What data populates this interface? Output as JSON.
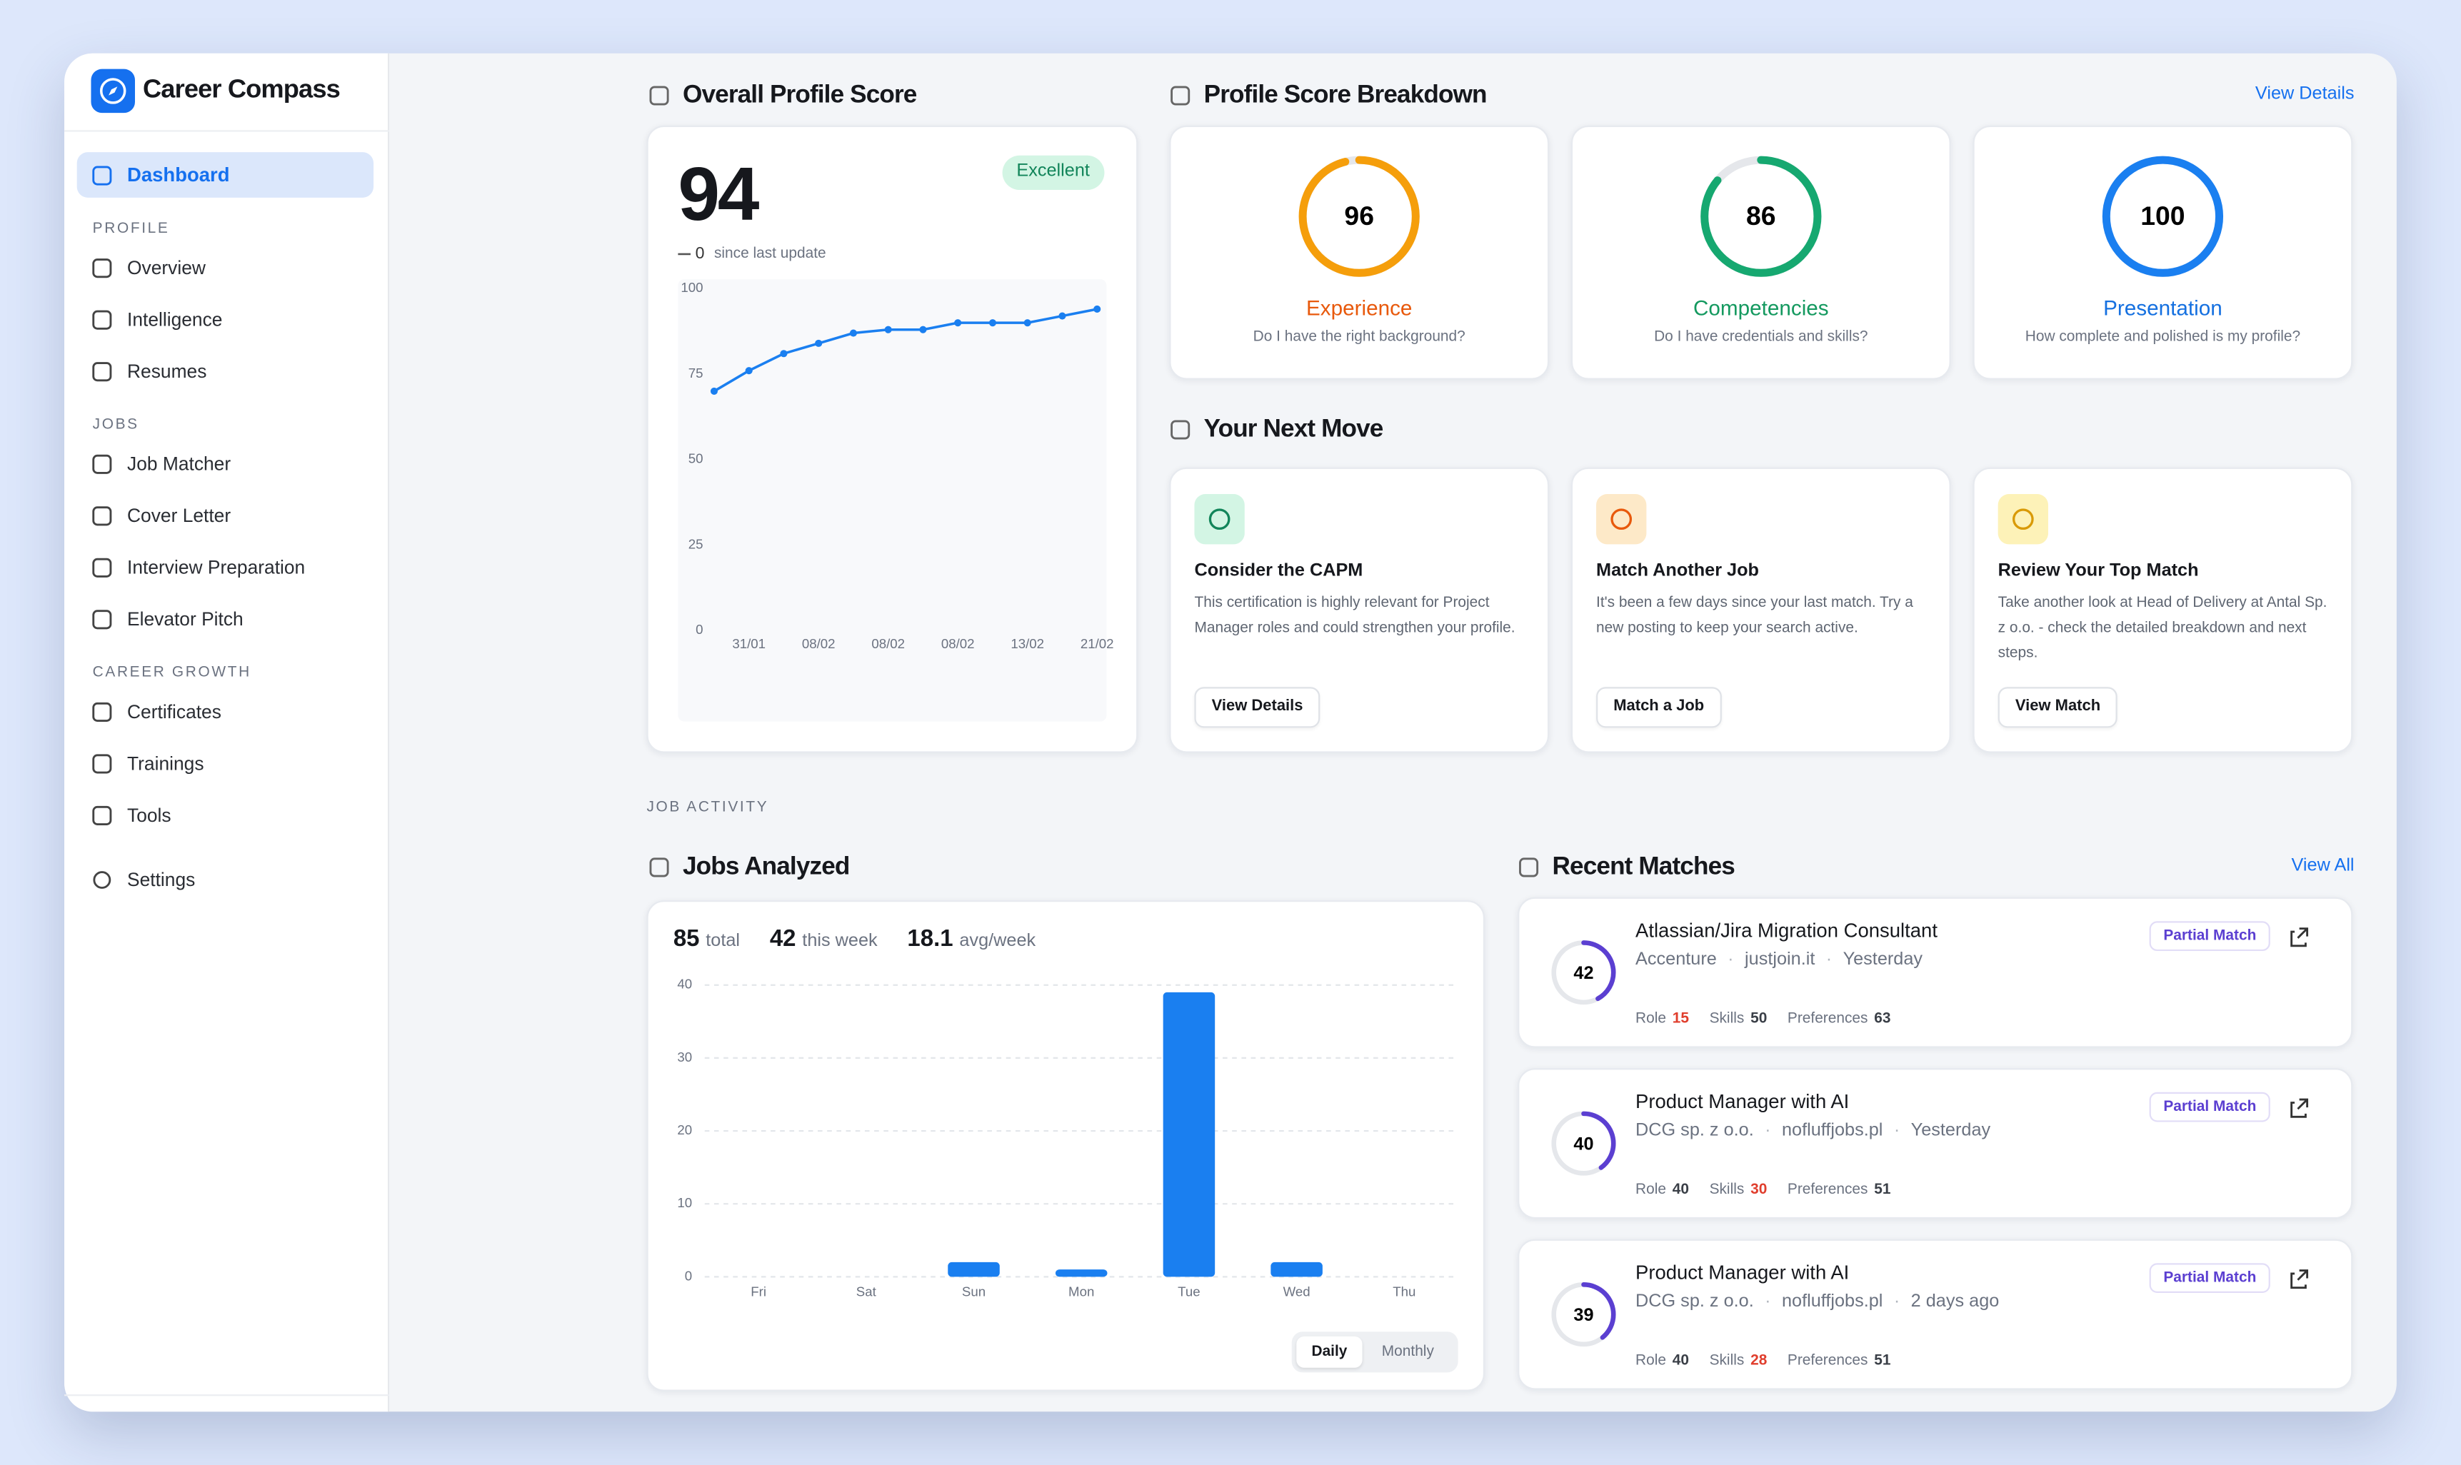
{
  "app": {
    "name": "Career Compass"
  },
  "sidebar": {
    "active": "Dashboard",
    "sections": [
      {
        "title": "PROFILE",
        "items": [
          "Overview",
          "Intelligence",
          "Resumes"
        ]
      },
      {
        "title": "JOBS",
        "items": [
          "Job Matcher",
          "Cover Letter",
          "Interview Preparation",
          "Elevator Pitch"
        ]
      },
      {
        "title": "CAREER GROWTH",
        "items": [
          "Certificates",
          "Trainings",
          "Tools"
        ]
      }
    ],
    "settings": "Settings"
  },
  "profile_score": {
    "title": "Overall Profile Score",
    "score": 94,
    "badge": "Excellent",
    "delta": 0,
    "delta_label": "since last update",
    "chart": {
      "type": "line",
      "x": [
        null,
        "31/01",
        null,
        "08/02",
        null,
        "08/02",
        null,
        "08/02",
        null,
        "13/02",
        null,
        "21/02"
      ],
      "values": [
        70,
        76,
        81,
        84,
        87,
        88,
        88,
        90,
        90,
        90,
        92,
        94
      ],
      "color": "#1a7ff0",
      "ylim": [
        0,
        100
      ],
      "yticks": [
        0,
        25,
        50,
        75,
        100
      ],
      "grid": false
    }
  },
  "breakdown": {
    "title": "Profile Score Breakdown",
    "link": "View Details",
    "items": [
      {
        "score": 96,
        "label": "Experience",
        "question": "Do I have the right background?",
        "color": "#f59e0b",
        "label_color": "#e8590c"
      },
      {
        "score": 86,
        "label": "Competencies",
        "question": "Do I have credentials and skills?",
        "color": "#16a870",
        "label_color": "#14995f"
      },
      {
        "score": 100,
        "label": "Presentation",
        "question": "How complete and polished is my profile?",
        "color": "#1a7ff0",
        "label_color": "#1570e0"
      }
    ]
  },
  "next_move": {
    "title": "Your Next Move",
    "cards": [
      {
        "title": "Consider the CAPM",
        "text": "This certification is highly relevant for Project Manager roles and could strengthen your profile.",
        "button": "View Details"
      },
      {
        "title": "Match Another Job",
        "text": "It's been a few days since your last match. Try a new posting to keep your search active.",
        "button": "Match a Job"
      },
      {
        "title": "Review Your Top Match",
        "text": "Take another look at Head of Delivery at Antal Sp. z o.o. - check the detailed breakdown and next steps.",
        "button": "View Match"
      }
    ]
  },
  "job_activity": {
    "label": "JOB ACTIVITY",
    "jobs_analyzed": {
      "title": "Jobs Analyzed",
      "stats": [
        {
          "value": 85,
          "label": "total"
        },
        {
          "value": 42,
          "label": "this week"
        },
        {
          "value": 18.1,
          "label": "avg/week"
        }
      ],
      "chart": {
        "type": "bar",
        "categories": [
          "Fri",
          "Sat",
          "Sun",
          "Mon",
          "Tue",
          "Wed",
          "Thu"
        ],
        "values": [
          0,
          0,
          2,
          1,
          39,
          2,
          0
        ],
        "color": "#1a7ff0",
        "ylim": [
          0,
          40
        ],
        "yticks": [
          0,
          10,
          20,
          30,
          40
        ],
        "grid": true
      },
      "toggles": [
        "Daily",
        "Monthly"
      ]
    },
    "recent_matches": {
      "title": "Recent Matches",
      "link": "View All",
      "items": [
        {
          "score": 42,
          "title": "Atlassian/Jira Migration Consultant",
          "company": "Accenture",
          "source": "justjoin.it",
          "time": "Yesterday",
          "badge": "Partial Match",
          "metrics": [
            {
              "label": "Role",
              "value": 15
            },
            {
              "label": "Skills",
              "value": 50
            },
            {
              "label": "Preferences",
              "value": 63
            }
          ]
        },
        {
          "score": 40,
          "title": "Product Manager with AI",
          "company": "DCG sp. z o.o.",
          "source": "nofluffjobs.pl",
          "time": "Yesterday",
          "badge": "Partial Match",
          "metrics": [
            {
              "label": "Role",
              "value": 40
            },
            {
              "label": "Skills",
              "value": 30
            },
            {
              "label": "Preferences",
              "value": 51
            }
          ]
        },
        {
          "score": 39,
          "title": "Product Manager with AI",
          "company": "DCG sp. z o.o.",
          "source": "nofluffjobs.pl",
          "time": "2 days ago",
          "badge": "Partial Match",
          "metrics": [
            {
              "label": "Role",
              "value": 40
            },
            {
              "label": "Skills",
              "value": 28
            },
            {
              "label": "Preferences",
              "value": 51
            }
          ]
        }
      ]
    }
  }
}
